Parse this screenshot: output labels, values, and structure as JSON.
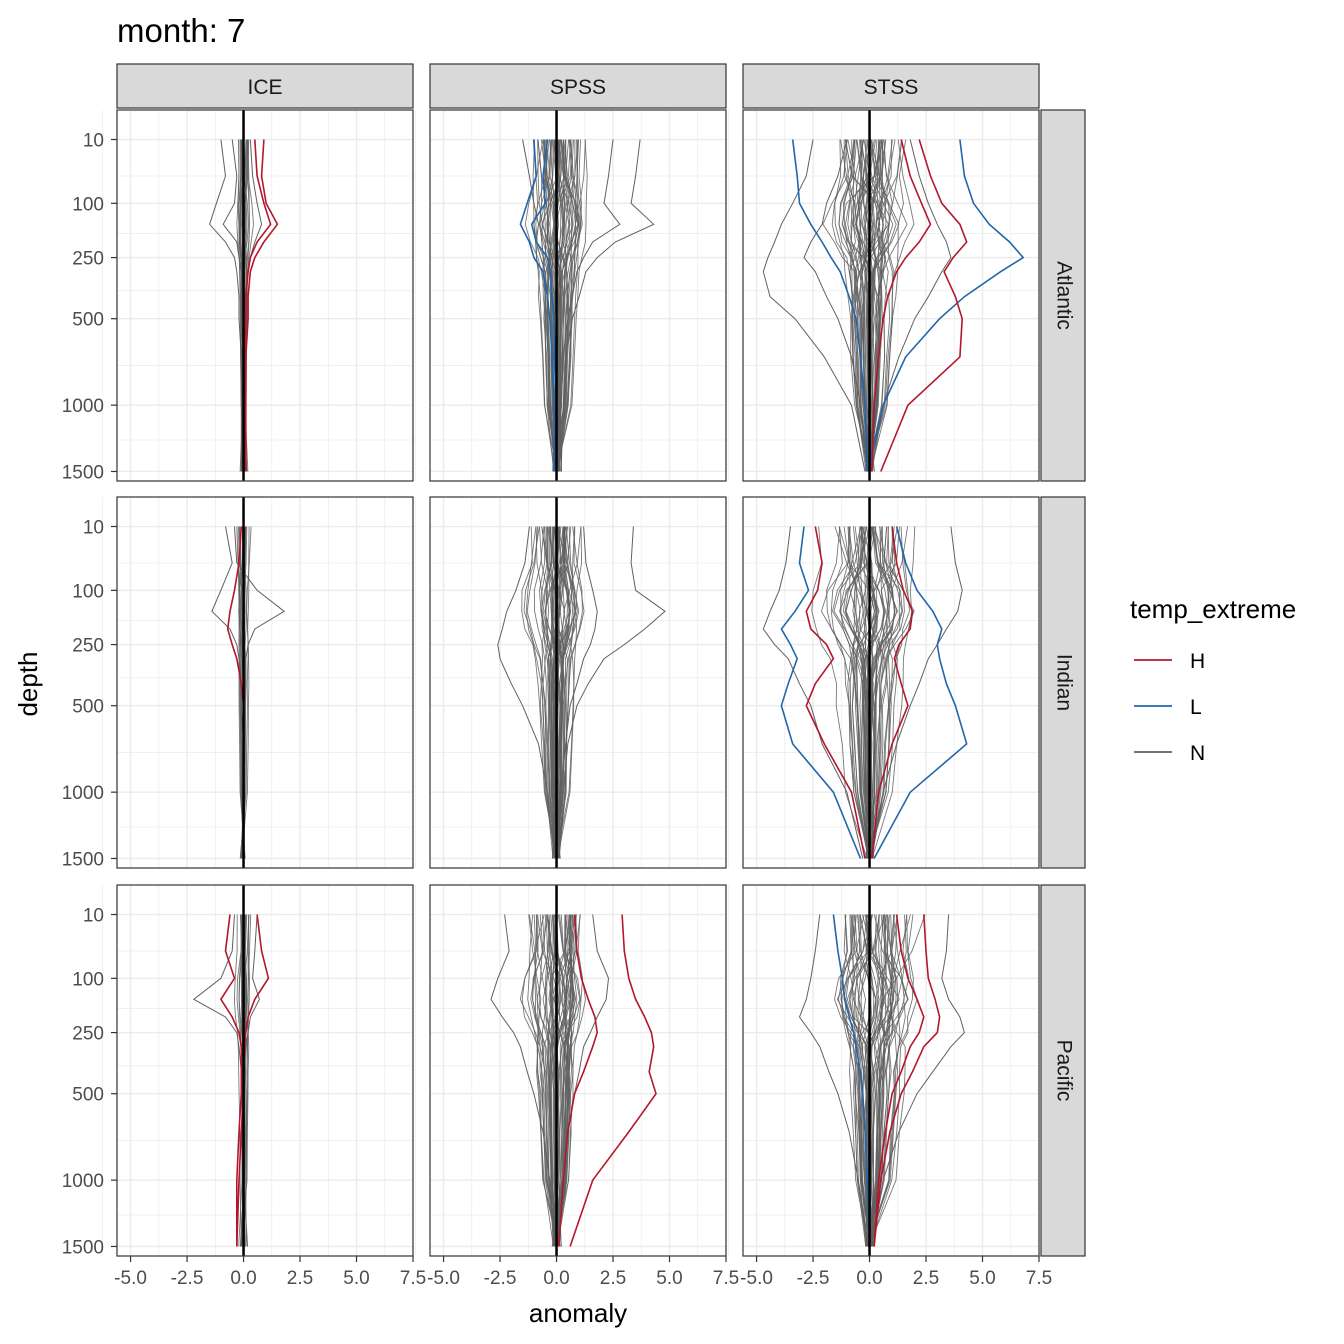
{
  "chart_data": {
    "type": "line",
    "title": "month: 7",
    "xlabel": "anomaly",
    "ylabel": "depth",
    "xlim": [
      -5.6,
      7.5
    ],
    "x_ticks": [
      -5.0,
      -2.5,
      0.0,
      2.5,
      5.0,
      7.5
    ],
    "x_tick_labels": [
      "-5.0",
      "-2.5",
      "0.0",
      "2.5",
      "5.0",
      "7.5"
    ],
    "y_scale": "sqrt",
    "ylim": [
      1580,
      0
    ],
    "y_ticks": [
      10,
      100,
      250,
      500,
      1000,
      1500
    ],
    "y_tick_labels": [
      "10",
      "100",
      "250",
      "500",
      "1000",
      "1500"
    ],
    "columns": [
      "ICE",
      "SPSS",
      "STSS"
    ],
    "rows": [
      "Atlantic",
      "Indian",
      "Pacific"
    ],
    "legend": {
      "title": "temp_extreme",
      "position": "right",
      "entries": [
        {
          "key": "H",
          "label": "H",
          "color": "#B2182B"
        },
        {
          "key": "L",
          "label": "L",
          "color": "#2166AC"
        },
        {
          "key": "N",
          "label": "N",
          "color": "#606060"
        }
      ]
    },
    "depth_levels": [
      10,
      50,
      100,
      150,
      200,
      250,
      300,
      400,
      500,
      700,
      1000,
      1500
    ],
    "reference_line": {
      "x": 0,
      "color": "#000000"
    },
    "series": [
      {
        "panel": "Atlantic-ICE",
        "group": "N",
        "values": [
          -0.5,
          -0.3,
          -0.4,
          -0.9,
          -0.3,
          -0.2,
          -0.1,
          -0.1,
          -0.1,
          -0.05,
          0,
          0
        ]
      },
      {
        "panel": "Atlantic-ICE",
        "group": "N",
        "values": [
          0.3,
          0.4,
          0.6,
          0.8,
          0.5,
          0.3,
          0.2,
          0.1,
          0.1,
          0.05,
          0,
          0
        ]
      },
      {
        "panel": "Atlantic-ICE",
        "group": "N",
        "values": [
          -1.0,
          -0.8,
          -1.2,
          -1.5,
          -0.8,
          -0.4,
          -0.3,
          -0.2,
          -0.2,
          -0.1,
          -0.1,
          -0.1
        ]
      },
      {
        "panel": "Atlantic-ICE",
        "group": "H",
        "values": [
          0.9,
          0.8,
          1.0,
          1.5,
          0.9,
          0.5,
          0.3,
          0.2,
          0.2,
          0.1,
          0.1,
          0.1
        ]
      },
      {
        "panel": "Atlantic-ICE",
        "group": "H",
        "values": [
          0.5,
          0.6,
          0.9,
          1.2,
          0.6,
          0.3,
          0.2,
          0.1,
          0.1,
          0.05,
          0.05,
          0.05
        ]
      },
      {
        "panel": "Atlantic-SPSS",
        "group": "N",
        "values": [
          -1.5,
          -1.2,
          -1.0,
          -0.8,
          -0.9,
          -0.7,
          -0.5,
          -0.4,
          -0.3,
          -0.2,
          -0.1,
          -0.1
        ]
      },
      {
        "panel": "Atlantic-SPSS",
        "group": "N",
        "values": [
          2.5,
          2.3,
          2.1,
          2.8,
          1.6,
          1.2,
          0.9,
          0.7,
          0.5,
          0.3,
          0.2,
          0.1
        ]
      },
      {
        "panel": "Atlantic-SPSS",
        "group": "N",
        "values": [
          3.7,
          3.5,
          3.3,
          4.3,
          2.6,
          1.8,
          1.3,
          1.0,
          0.7,
          0.4,
          0.3,
          0.2
        ]
      },
      {
        "panel": "Atlantic-SPSS",
        "group": "L",
        "values": [
          -1.0,
          -0.9,
          -1.3,
          -1.6,
          -1.2,
          -1.0,
          -0.6,
          -0.4,
          -0.3,
          -0.2,
          -0.1,
          -0.1
        ]
      },
      {
        "panel": "Atlantic-SPSS",
        "group": "L",
        "values": [
          -0.4,
          -0.6,
          -0.5,
          -1.1,
          -0.9,
          -0.4,
          -0.3,
          -0.2,
          -0.1,
          -0.1,
          0,
          0
        ]
      },
      {
        "panel": "Atlantic-STSS",
        "group": "N",
        "values": [
          -2.5,
          -2.8,
          -3.4,
          -3.9,
          -4.2,
          -4.5,
          -4.7,
          -4.4,
          -3.3,
          -2.0,
          -0.8,
          -0.2
        ]
      },
      {
        "panel": "Atlantic-STSS",
        "group": "N",
        "values": [
          1.8,
          2.2,
          2.6,
          3.0,
          3.4,
          3.6,
          3.2,
          2.6,
          2.0,
          1.3,
          0.6,
          0.1
        ]
      },
      {
        "panel": "Atlantic-STSS",
        "group": "N",
        "values": [
          -1.0,
          -1.4,
          -1.9,
          -2.1,
          -2.6,
          -2.9,
          -2.4,
          -1.9,
          -1.4,
          -0.8,
          -0.4,
          -0.1
        ]
      },
      {
        "panel": "Atlantic-STSS",
        "group": "L",
        "values": [
          4.0,
          4.2,
          4.6,
          5.3,
          6.2,
          6.8,
          5.8,
          4.2,
          3.1,
          1.6,
          0.6,
          -0.1
        ]
      },
      {
        "panel": "Atlantic-STSS",
        "group": "L",
        "values": [
          -3.4,
          -3.2,
          -3.1,
          -2.6,
          -2.1,
          -1.7,
          -1.3,
          -0.9,
          -0.6,
          -0.4,
          -0.2,
          -0.1
        ]
      },
      {
        "panel": "Atlantic-STSS",
        "group": "H",
        "values": [
          2.2,
          2.7,
          3.2,
          4.0,
          4.3,
          3.7,
          3.3,
          3.8,
          4.1,
          4.0,
          1.7,
          0.5
        ]
      },
      {
        "panel": "Atlantic-STSS",
        "group": "H",
        "values": [
          1.4,
          1.8,
          2.3,
          2.7,
          2.2,
          1.6,
          1.2,
          0.8,
          0.6,
          0.4,
          0.2,
          0.1
        ]
      },
      {
        "panel": "Indian-ICE",
        "group": "N",
        "values": [
          -0.4,
          -0.3,
          0.6,
          1.8,
          0.5,
          0.2,
          0.1,
          0.1,
          0.05,
          0,
          0,
          0
        ]
      },
      {
        "panel": "Indian-ICE",
        "group": "N",
        "values": [
          -0.8,
          -0.5,
          -1.0,
          -1.4,
          -0.6,
          -0.3,
          -0.2,
          -0.1,
          -0.1,
          0,
          0,
          0
        ]
      },
      {
        "panel": "Indian-ICE",
        "group": "H",
        "values": [
          -0.1,
          -0.2,
          -0.4,
          -0.6,
          -0.7,
          -0.5,
          -0.3,
          -0.1,
          0,
          0,
          0,
          0
        ]
      },
      {
        "panel": "Indian-SPSS",
        "group": "N",
        "values": [
          3.4,
          3.3,
          3.5,
          4.8,
          3.9,
          3.0,
          2.1,
          1.4,
          0.9,
          0.5,
          0.3,
          0.1
        ]
      },
      {
        "panel": "Indian-SPSS",
        "group": "N",
        "values": [
          -1.2,
          -1.4,
          -1.8,
          -2.2,
          -2.4,
          -2.6,
          -2.5,
          -2.0,
          -1.5,
          -0.8,
          -0.4,
          -0.1
        ]
      },
      {
        "panel": "Indian-SPSS",
        "group": "N",
        "values": [
          1.2,
          1.3,
          1.6,
          1.8,
          1.7,
          1.5,
          1.2,
          0.9,
          0.6,
          0.4,
          0.2,
          0.1
        ]
      },
      {
        "panel": "Indian-STSS",
        "group": "N",
        "values": [
          -3.5,
          -3.7,
          -4.0,
          -4.4,
          -4.7,
          -4.2,
          -3.6,
          -3.1,
          -2.6,
          -2.1,
          -1.0,
          -0.3
        ]
      },
      {
        "panel": "Indian-STSS",
        "group": "N",
        "values": [
          3.6,
          3.8,
          4.1,
          3.9,
          3.4,
          3.0,
          2.6,
          2.2,
          1.8,
          1.2,
          0.6,
          0.1
        ]
      },
      {
        "panel": "Indian-STSS",
        "group": "L",
        "values": [
          -2.9,
          -3.1,
          -2.7,
          -3.3,
          -3.9,
          -3.5,
          -3.2,
          -3.6,
          -3.9,
          -3.4,
          -1.6,
          -0.4
        ]
      },
      {
        "panel": "Indian-STSS",
        "group": "L",
        "values": [
          1.2,
          1.6,
          2.1,
          2.8,
          3.2,
          3.0,
          3.1,
          3.4,
          3.8,
          4.3,
          1.8,
          0.2
        ]
      },
      {
        "panel": "Indian-STSS",
        "group": "H",
        "values": [
          -2.4,
          -2.1,
          -2.3,
          -2.8,
          -2.6,
          -1.9,
          -1.6,
          -2.4,
          -2.8,
          -2.0,
          -0.8,
          -0.2
        ]
      },
      {
        "panel": "Indian-STSS",
        "group": "H",
        "values": [
          1.0,
          1.2,
          1.5,
          1.9,
          1.8,
          1.3,
          1.1,
          1.4,
          1.7,
          1.0,
          0.4,
          0.1
        ]
      },
      {
        "panel": "Pacific-ICE",
        "group": "N",
        "values": [
          -0.4,
          -0.5,
          -1.0,
          -2.2,
          -0.8,
          -0.3,
          -0.2,
          -0.1,
          -0.1,
          0,
          0,
          0
        ]
      },
      {
        "panel": "Pacific-ICE",
        "group": "N",
        "values": [
          0.6,
          0.5,
          0.4,
          0.7,
          0.3,
          0.2,
          0.1,
          0.05,
          0,
          0,
          0,
          0
        ]
      },
      {
        "panel": "Pacific-ICE",
        "group": "H",
        "values": [
          0.6,
          0.8,
          1.1,
          0.5,
          0.2,
          0.1,
          0.05,
          0,
          0,
          -0.1,
          -0.2,
          -0.3
        ]
      },
      {
        "panel": "Pacific-ICE",
        "group": "H",
        "values": [
          -0.6,
          -0.8,
          -0.4,
          -1.0,
          -0.5,
          -0.2,
          -0.1,
          -0.1,
          -0.1,
          -0.2,
          -0.3,
          -0.3
        ]
      },
      {
        "panel": "Pacific-SPSS",
        "group": "N",
        "values": [
          -2.3,
          -2.1,
          -2.6,
          -2.9,
          -2.4,
          -1.9,
          -1.6,
          -1.3,
          -1.0,
          -0.6,
          -0.3,
          -0.1
        ]
      },
      {
        "panel": "Pacific-SPSS",
        "group": "N",
        "values": [
          1.6,
          1.8,
          2.3,
          2.2,
          1.8,
          1.5,
          1.2,
          1.0,
          0.8,
          0.5,
          0.3,
          0.1
        ]
      },
      {
        "panel": "Pacific-SPSS",
        "group": "H",
        "values": [
          2.9,
          3.0,
          3.2,
          3.5,
          3.9,
          4.2,
          4.3,
          4.1,
          4.4,
          3.2,
          1.6,
          0.6
        ]
      },
      {
        "panel": "Pacific-SPSS",
        "group": "H",
        "values": [
          0.8,
          0.9,
          1.1,
          1.4,
          1.7,
          1.8,
          1.6,
          1.2,
          0.8,
          0.5,
          0.3,
          0.1
        ]
      },
      {
        "panel": "Pacific-STSS",
        "group": "N",
        "values": [
          -2.2,
          -2.4,
          -2.6,
          -2.8,
          -3.1,
          -2.6,
          -2.2,
          -1.8,
          -1.4,
          -0.9,
          -0.5,
          -0.1
        ]
      },
      {
        "panel": "Pacific-STSS",
        "group": "N",
        "values": [
          3.5,
          3.4,
          3.2,
          3.5,
          4.0,
          4.2,
          3.6,
          2.8,
          2.1,
          1.3,
          0.6,
          0.1
        ]
      },
      {
        "panel": "Pacific-STSS",
        "group": "L",
        "values": [
          -1.6,
          -1.4,
          -1.2,
          -1.1,
          -0.9,
          -0.7,
          -0.6,
          -0.4,
          -0.3,
          -0.2,
          -0.1,
          0
        ]
      },
      {
        "panel": "Pacific-STSS",
        "group": "H",
        "values": [
          2.4,
          2.5,
          2.6,
          2.9,
          3.1,
          3.0,
          2.4,
          1.9,
          1.4,
          0.9,
          0.5,
          0.2
        ]
      },
      {
        "panel": "Pacific-STSS",
        "group": "H",
        "values": [
          1.2,
          1.4,
          1.7,
          2.1,
          2.4,
          2.2,
          1.8,
          1.4,
          1.0,
          0.7,
          0.4,
          0.2
        ]
      }
    ]
  }
}
